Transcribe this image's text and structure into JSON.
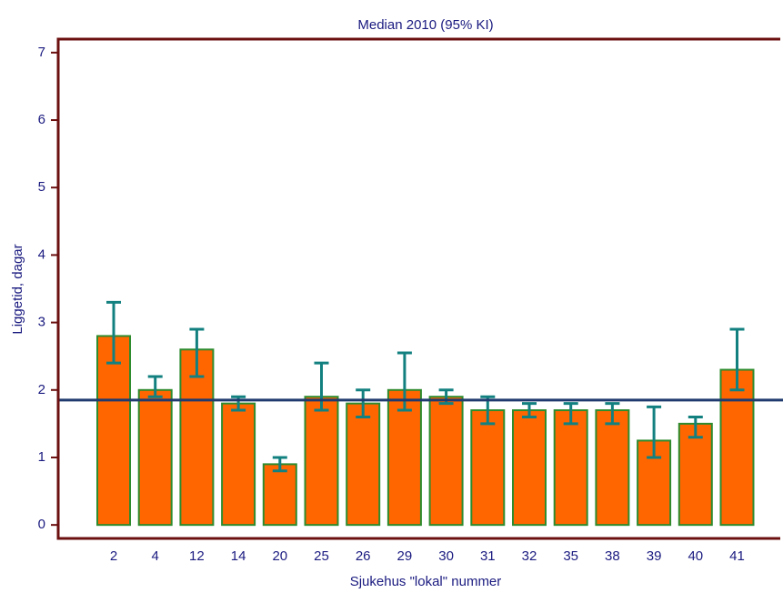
{
  "chart_data": {
    "type": "bar",
    "title": "Median 2010 (95% KI)",
    "x_label": "Sjukehus \"lokal\" nummer",
    "y_label": "Liggetid, dagar",
    "categories": [
      "2",
      "4",
      "12",
      "14",
      "20",
      "25",
      "26",
      "29",
      "30",
      "31",
      "32",
      "35",
      "38",
      "39",
      "40",
      "41"
    ],
    "series": [
      {
        "color": "#ff6600",
        "values": [
          2.8,
          2.0,
          2.6,
          1.8,
          0.9,
          1.9,
          1.8,
          2.0,
          1.9,
          1.7,
          1.7,
          1.7,
          1.7,
          1.25,
          1.5,
          2.3
        ],
        "lower": [
          2.4,
          1.9,
          2.2,
          1.7,
          0.8,
          1.7,
          1.6,
          1.7,
          1.8,
          1.5,
          1.6,
          1.5,
          1.5,
          1.0,
          1.3,
          2.0
        ],
        "upper": [
          3.3,
          2.2,
          2.9,
          1.9,
          1.0,
          2.4,
          2.0,
          2.55,
          2.0,
          1.9,
          1.8,
          1.8,
          1.8,
          1.75,
          1.6,
          2.9
        ]
      }
    ],
    "reference_line": 1.85,
    "ylim": [
      -0.2,
      7.2
    ],
    "yticks": [
      0,
      1,
      2,
      3,
      4,
      5,
      6,
      7
    ]
  }
}
